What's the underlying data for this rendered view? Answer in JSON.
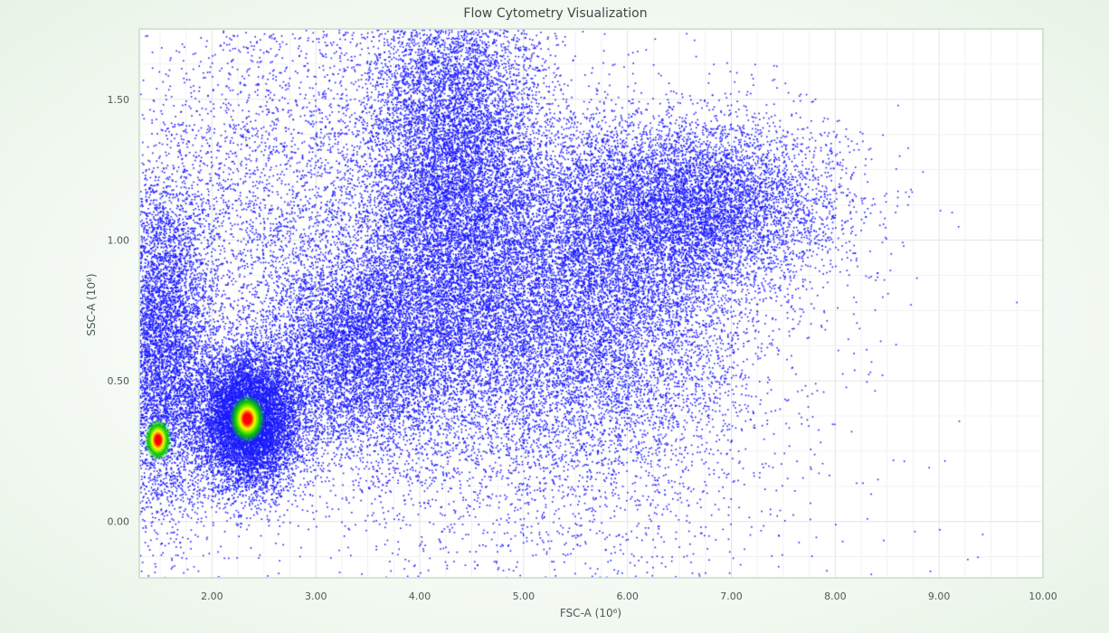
{
  "chart_data": {
    "type": "scatter",
    "title": "Flow Cytometry Visualization",
    "xlabel": "FSC-A (10⁶)",
    "ylabel": "SSC-A (10⁶)",
    "xlim": [
      1.3,
      10.0
    ],
    "ylim": [
      -0.2,
      1.75
    ],
    "x_ticks": [
      "2.00",
      "3.00",
      "4.00",
      "5.00",
      "6.00",
      "7.00",
      "8.00",
      "9.00",
      "10.00"
    ],
    "x_tick_values": [
      2,
      3,
      4,
      5,
      6,
      7,
      8,
      9,
      10
    ],
    "y_ticks": [
      "0.00",
      "0.50",
      "1.00",
      "1.50"
    ],
    "y_tick_values": [
      0,
      0.5,
      1.0,
      1.5
    ],
    "grid": true,
    "density_colormap": [
      "#1a1aff",
      "#00c800",
      "#ffff00",
      "#ff0000"
    ],
    "point_color": "#1a1aff",
    "populations": [
      {
        "center": [
          1.5,
          0.62
        ],
        "spread": [
          0.28,
          0.3
        ],
        "count": 7000
      },
      {
        "center": [
          2.35,
          0.36
        ],
        "spread": [
          0.25,
          0.12
        ],
        "count": 9000
      },
      {
        "center": [
          4.3,
          1.25
        ],
        "spread": [
          0.45,
          0.42
        ],
        "count": 12000
      },
      {
        "center": [
          5.5,
          0.78
        ],
        "spread": [
          0.8,
          0.3
        ],
        "count": 11000
      },
      {
        "center": [
          6.6,
          1.12
        ],
        "spread": [
          0.7,
          0.15
        ],
        "count": 7000
      },
      {
        "center": [
          3.4,
          0.62
        ],
        "spread": [
          0.5,
          0.2
        ],
        "count": 7000
      },
      {
        "center": [
          5.2,
          0.4
        ],
        "spread": [
          1.4,
          0.5
        ],
        "count": 2500
      },
      {
        "center": [
          2.6,
          1.2
        ],
        "spread": [
          0.7,
          0.35
        ],
        "count": 2500
      }
    ],
    "hotspots": [
      {
        "center": [
          1.48,
          0.29
        ],
        "radius": [
          0.13,
          0.075
        ]
      },
      {
        "center": [
          2.34,
          0.365
        ],
        "radius": [
          0.17,
          0.085
        ]
      }
    ]
  }
}
